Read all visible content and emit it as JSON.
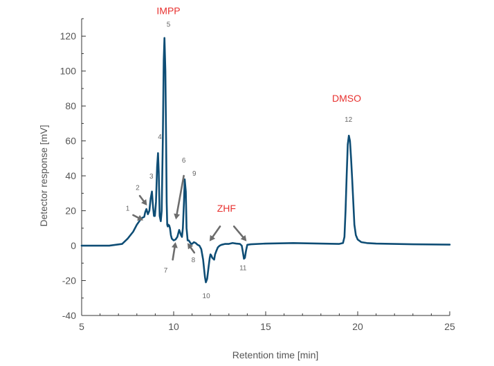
{
  "chart_data": {
    "type": "line",
    "title": "",
    "xlabel": "Retention time [min]",
    "ylabel": "Detector response [mV]",
    "xlim": [
      5,
      25
    ],
    "ylim": [
      -40,
      130
    ],
    "x_ticks": [
      5,
      10,
      15,
      20,
      25
    ],
    "y_ticks": [
      -40,
      -20,
      0,
      20,
      40,
      60,
      80,
      100,
      120
    ],
    "x_tick_labels": [
      "5",
      "10",
      "15",
      "20",
      "25"
    ],
    "y_tick_labels": [
      "-40",
      "-20",
      "0",
      "20",
      "40",
      "60",
      "80",
      "100",
      "120"
    ],
    "grid": false,
    "line_color": "#0e4d75",
    "annotation_color": "#e8312f",
    "series": [
      {
        "x": [
          5.0,
          6.5,
          7.2,
          7.5,
          7.8,
          8.0,
          8.2,
          8.3,
          8.4,
          8.45,
          8.52,
          8.6,
          8.68,
          8.75,
          8.82,
          8.88,
          8.93,
          8.98,
          9.04,
          9.1,
          9.15,
          9.19,
          9.24,
          9.3,
          9.35,
          9.41,
          9.46,
          9.5,
          9.55,
          9.59,
          9.62,
          9.65,
          9.68,
          9.72,
          9.76,
          9.8,
          9.85,
          9.9,
          10.0,
          10.1,
          10.2,
          10.3,
          10.4,
          10.45,
          10.5,
          10.56,
          10.6,
          10.66,
          10.7,
          10.76,
          10.82,
          10.88,
          10.95,
          11.0,
          11.1,
          11.2,
          11.3,
          11.4,
          11.5,
          11.6,
          11.7,
          11.75,
          11.82,
          11.9,
          11.96,
          12.0,
          12.04,
          12.1,
          12.2,
          12.25,
          12.32,
          12.4,
          12.5,
          12.6,
          12.8,
          13.0,
          13.2,
          13.4,
          13.6,
          13.7,
          13.75,
          13.82,
          13.87,
          13.93,
          14.0,
          14.2,
          15.0,
          16.5,
          18.0,
          19.0,
          19.2,
          19.28,
          19.34,
          19.4,
          19.46,
          19.52,
          19.58,
          19.64,
          19.7,
          19.76,
          19.82,
          19.9,
          20.0,
          20.2,
          20.5,
          21.0,
          22.0,
          23.0,
          24.0,
          25.0
        ],
        "y": [
          0,
          0,
          1,
          4,
          8,
          12,
          15,
          16,
          16.5,
          19,
          21,
          18,
          20,
          27,
          31,
          22,
          17,
          17,
          25,
          45,
          53,
          42,
          17,
          14,
          20,
          60,
          106,
          119,
          100,
          60,
          25,
          12,
          11,
          12,
          11.5,
          10,
          6,
          4,
          3,
          3.5,
          5,
          9,
          6,
          5,
          10,
          25,
          38,
          31,
          10,
          3,
          3,
          2,
          1,
          1,
          2,
          1.5,
          0.5,
          0,
          -2,
          -8,
          -18,
          -21,
          -19,
          -12,
          -7,
          -5,
          -5.5,
          -7,
          -8,
          -5,
          -3,
          -1,
          0,
          0.5,
          1,
          1,
          1.5,
          1.2,
          1,
          0,
          -3,
          -7.5,
          -7,
          -3,
          0.5,
          0.8,
          1.2,
          1.5,
          1.2,
          1,
          1.5,
          5,
          20,
          40,
          58,
          63,
          60,
          50,
          38,
          25,
          12,
          6,
          3.5,
          2,
          1.5,
          1.2,
          1,
          0.8,
          0.7,
          0.6
        ]
      }
    ],
    "peak_labels": [
      {
        "text": "1",
        "x": 7.5,
        "y": 20
      },
      {
        "text": "2",
        "x": 8.04,
        "y": 32
      },
      {
        "text": "3",
        "x": 8.79,
        "y": 38.5
      },
      {
        "text": "4",
        "x": 9.25,
        "y": 61
      },
      {
        "text": "5",
        "x": 9.72,
        "y": 125.5
      },
      {
        "text": "6",
        "x": 10.55,
        "y": 47.5
      },
      {
        "text": "7",
        "x": 9.57,
        "y": -15.5
      },
      {
        "text": "8",
        "x": 11.07,
        "y": -9.5
      },
      {
        "text": "9",
        "x": 11.12,
        "y": 40
      },
      {
        "text": "10",
        "x": 11.77,
        "y": -30
      },
      {
        "text": "11",
        "x": 13.77,
        "y": -14
      },
      {
        "text": "12",
        "x": 19.5,
        "y": 71
      }
    ],
    "compound_labels": [
      {
        "text": "IMPP",
        "x": 9.72,
        "y": 132.5
      },
      {
        "text": "ZHF",
        "x": 12.87,
        "y": 19.5
      },
      {
        "text": "DMSO",
        "x": 19.4,
        "y": 82.5
      }
    ],
    "arrows": [
      {
        "from": [
          7.8,
          17.5
        ],
        "to": [
          8.35,
          14.5
        ]
      },
      {
        "from": [
          8.16,
          28.5
        ],
        "to": [
          8.55,
          23
        ]
      },
      {
        "from": [
          10.55,
          40
        ],
        "to": [
          10.12,
          15
        ]
      },
      {
        "from": [
          9.95,
          -8
        ],
        "to": [
          10.1,
          2
        ]
      },
      {
        "from": [
          11.12,
          -4
        ],
        "to": [
          10.75,
          1.5
        ]
      },
      {
        "from": [
          12.52,
          11
        ],
        "to": [
          11.95,
          2.5
        ]
      },
      {
        "from": [
          13.28,
          11
        ],
        "to": [
          13.96,
          2.5
        ]
      }
    ]
  }
}
